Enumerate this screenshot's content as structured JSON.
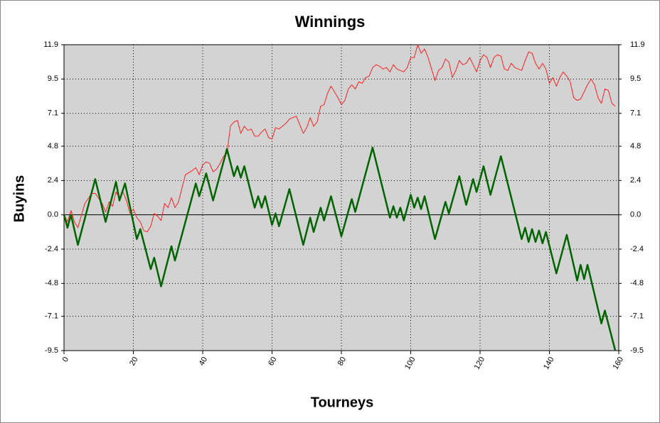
{
  "chart_data": {
    "type": "line",
    "title": "Winnings",
    "x_label": "Tourneys",
    "y_label": "Buyins",
    "xlim": [
      0,
      160
    ],
    "xticks": [
      0,
      20,
      40,
      60,
      80,
      100,
      120,
      140,
      160
    ],
    "ylim": [
      -9.5,
      11.9
    ],
    "yticks": [
      -9.5,
      -7.1,
      -4.8,
      -2.4,
      {
        "value": 0,
        "label": "0.0"
      },
      2.4,
      4.8,
      7.1,
      9.5,
      11.9
    ],
    "grid": true,
    "background": "#d3d3d3",
    "series": [
      {
        "color": "#ff2020",
        "width": 1,
        "x": [
          0,
          1,
          2,
          3,
          4,
          6,
          8,
          9,
          11,
          12,
          13,
          14,
          15,
          16,
          17,
          18,
          19,
          20,
          21,
          22,
          23,
          24,
          25,
          26,
          27,
          28,
          29,
          30,
          31,
          32,
          33,
          35,
          37,
          38,
          39,
          40,
          41,
          42,
          43,
          44,
          45,
          46,
          47,
          48,
          49,
          50,
          51,
          52,
          53,
          54,
          55,
          56,
          57,
          58,
          59,
          60,
          61,
          62,
          64,
          65,
          66,
          67,
          68,
          69,
          70,
          71,
          72,
          73,
          74,
          75,
          76,
          77,
          78,
          79,
          80,
          81,
          82,
          83,
          84,
          85,
          86,
          87,
          88,
          89,
          90,
          91,
          92,
          93,
          94,
          95,
          96,
          97,
          98,
          99,
          100,
          101,
          102,
          103,
          104,
          105,
          106,
          107,
          108,
          109,
          110,
          111,
          112,
          113,
          114,
          115,
          116,
          117,
          118,
          119,
          120,
          121,
          122,
          123,
          124,
          125,
          126,
          127,
          128,
          129,
          130,
          131,
          132,
          133,
          134,
          135,
          136,
          137,
          138,
          139,
          140,
          141,
          142,
          143,
          144,
          145,
          146,
          147,
          148,
          149,
          150,
          151,
          152,
          153,
          154,
          155,
          156,
          157,
          158,
          159
        ],
        "values": [
          0,
          -0.5,
          0.3,
          -0.5,
          -0.9,
          0.8,
          1.5,
          1.5,
          0.8,
          0.2,
          0.9,
          0.6,
          1.6,
          1.2,
          1.6,
          1.0,
          0.1,
          0.4,
          -0.2,
          -0.5,
          -1.1,
          -1.2,
          -0.8,
          0.1,
          -0.1,
          -0.4,
          0.8,
          0.5,
          1.2,
          0.5,
          0.9,
          2.8,
          3.1,
          3.3,
          2.8,
          3.5,
          3.7,
          3.6,
          3.0,
          3.2,
          3.6,
          4.1,
          4.3,
          6.2,
          6.5,
          6.6,
          5.7,
          6.2,
          5.9,
          6.0,
          5.5,
          5.5,
          5.8,
          6.0,
          5.4,
          5.3,
          6.1,
          6.0,
          6.4,
          6.7,
          6.8,
          6.9,
          6.3,
          5.7,
          6.1,
          6.8,
          6.2,
          6.5,
          7.6,
          7.7,
          8.5,
          9.0,
          8.6,
          8.2,
          7.7,
          8.0,
          8.8,
          9.1,
          8.8,
          9.3,
          9.2,
          9.6,
          9.7,
          10.3,
          10.5,
          10.4,
          10.2,
          10.3,
          10.0,
          10.5,
          10.2,
          10.1,
          10.0,
          10.3,
          11.0,
          11.0,
          11.9,
          11.3,
          11.6,
          11.0,
          10.2,
          9.4,
          10.1,
          10.3,
          10.9,
          10.7,
          9.6,
          10.1,
          10.8,
          10.5,
          10.6,
          11.0,
          10.5,
          10.0,
          10.8,
          11.2,
          11.0,
          10.3,
          11.0,
          11.2,
          11.1,
          10.2,
          10.1,
          10.6,
          10.3,
          10.2,
          10.1,
          10.8,
          11.4,
          11.3,
          10.6,
          10.2,
          10.6,
          10.2,
          9.2,
          9.6,
          9.0,
          9.6,
          10.0,
          9.7,
          9.3,
          8.2,
          8.0,
          8.1,
          8.6,
          9.1,
          9.5,
          9.1,
          8.2,
          7.8,
          8.8,
          8.7,
          7.8,
          7.6
        ]
      },
      {
        "color": "#006400",
        "width": 2.5,
        "x": [
          0,
          1,
          2,
          4,
          9,
          12,
          15,
          16,
          17.6,
          21,
          22,
          25,
          26,
          28,
          31,
          32,
          38,
          39,
          41,
          43,
          47,
          49,
          50,
          51,
          52,
          55,
          56,
          57,
          58,
          60,
          61,
          62,
          65,
          69,
          71,
          72,
          74,
          75,
          77,
          80,
          83,
          84,
          89,
          94,
          95,
          96,
          97,
          98,
          100,
          101,
          102,
          103,
          104,
          107,
          110,
          111,
          114,
          116,
          118,
          119,
          121,
          123,
          126,
          132,
          133,
          134,
          135,
          136,
          137,
          138,
          139,
          142,
          145,
          148,
          149,
          150,
          151,
          155,
          156,
          159
        ],
        "values": [
          0,
          -0.9,
          0,
          -2.1,
          2.5,
          -0.5,
          2.3,
          1.0,
          2.2,
          -1.7,
          -1.0,
          -3.8,
          -3.0,
          -5.0,
          -2.2,
          -3.2,
          2.2,
          1.3,
          2.9,
          1.0,
          4.6,
          2.7,
          3.4,
          2.6,
          3.4,
          0.5,
          1.3,
          0.5,
          1.3,
          -0.7,
          0.1,
          -0.8,
          1.8,
          -2.1,
          -0.2,
          -1.2,
          0.5,
          -0.4,
          1.3,
          -1.5,
          1.1,
          0.2,
          4.7,
          -0.2,
          0.6,
          -0.2,
          0.5,
          -0.4,
          1.4,
          0.5,
          1.2,
          0.4,
          1.3,
          -1.7,
          0.9,
          0.1,
          2.7,
          0.7,
          2.5,
          1.6,
          3.4,
          1.4,
          4.1,
          -1.7,
          -0.9,
          -1.9,
          -1.0,
          -1.9,
          -1.1,
          -2.0,
          -1.2,
          -4.1,
          -1.4,
          -4.6,
          -3.5,
          -4.5,
          -3.5,
          -7.6,
          -6.7,
          -9.5
        ]
      }
    ]
  }
}
